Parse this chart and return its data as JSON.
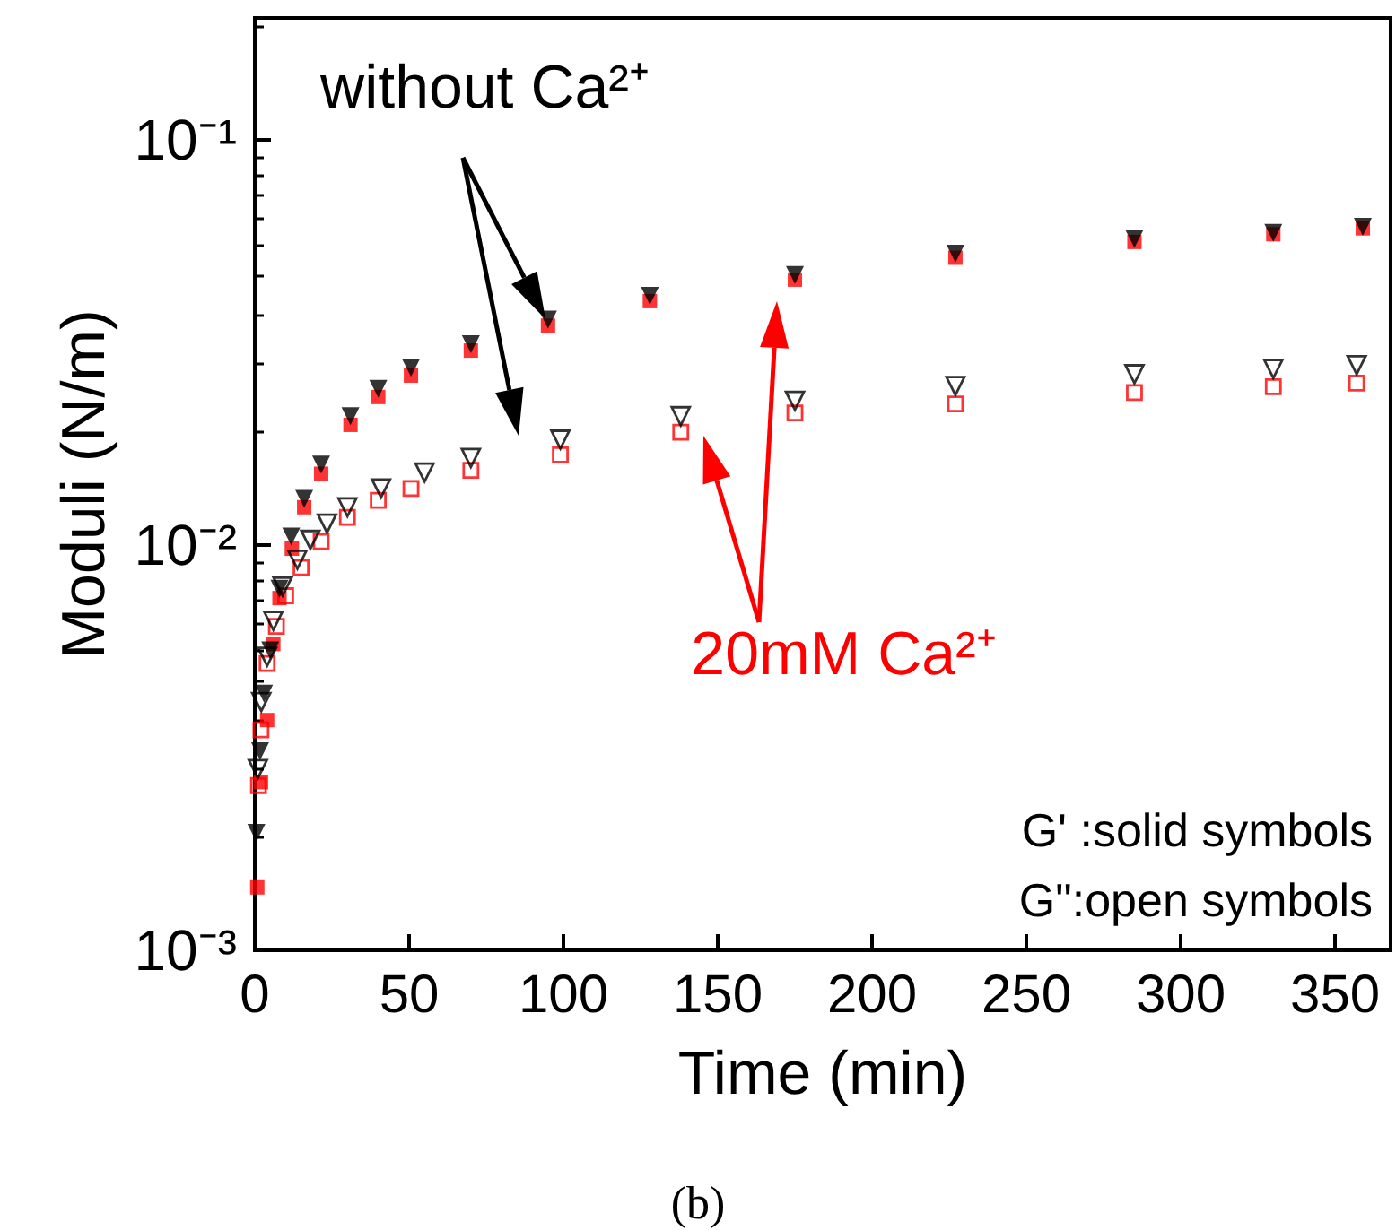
{
  "chart_data": {
    "type": "scatter",
    "xlabel": "Time (min)",
    "ylabel": "Moduli (N/m)",
    "xlim": [
      0,
      368
    ],
    "xticks": [
      0,
      50,
      100,
      150,
      200,
      250,
      300,
      350
    ],
    "ylim": [
      0.001,
      0.2
    ],
    "yticks": [
      {
        "value": 0.001,
        "label": "10⁻³"
      },
      {
        "value": 0.01,
        "label": "10⁻²"
      },
      {
        "value": 0.1,
        "label": "10⁻¹"
      }
    ],
    "log": "y",
    "grid": false,
    "annotations": [
      "without Ca²⁺",
      "20mM Ca²⁺",
      "G' :solid symbols",
      "G\":open symbols",
      "(b)"
    ],
    "series": [
      {
        "color": "#ff0000",
        "marker": "square",
        "x": [
          0.8,
          2,
          4,
          6,
          8,
          12,
          16,
          21.5,
          31,
          40,
          50.6,
          70,
          95,
          128,
          175,
          227,
          285,
          330,
          359
        ],
        "values": [
          0.00143,
          0.0026,
          0.0037,
          0.0057,
          0.0074,
          0.0098,
          0.0124,
          0.015,
          0.0198,
          0.0232,
          0.0262,
          0.0302,
          0.0348,
          0.04,
          0.0452,
          0.0512,
          0.056,
          0.0585,
          0.0605
        ]
      },
      {
        "color": "#ff0000",
        "marker": "square",
        "x": [
          1.2,
          2,
          4,
          7,
          10,
          15,
          21.5,
          30,
          40,
          50.6,
          70,
          99,
          138,
          175,
          227,
          285,
          330,
          357
        ],
        "values": [
          0.00255,
          0.0035,
          0.0051,
          0.0063,
          0.0075,
          0.0088,
          0.0102,
          0.0117,
          0.0129,
          0.0138,
          0.0153,
          0.0167,
          0.019,
          0.0212,
          0.0223,
          0.0238,
          0.0246,
          0.0251
        ]
      },
      {
        "color": "#000000",
        "marker": "triangle",
        "x": [
          0.5,
          1.7,
          3,
          5,
          8,
          11.8,
          16,
          21.5,
          31,
          40,
          50.6,
          70,
          95,
          128,
          175,
          227,
          285,
          330,
          359
        ],
        "values": [
          0.00195,
          0.0031,
          0.0043,
          0.0055,
          0.0078,
          0.0105,
          0.013,
          0.0158,
          0.0208,
          0.0243,
          0.0274,
          0.0313,
          0.036,
          0.0412,
          0.0464,
          0.0524,
          0.057,
          0.059,
          0.061
        ]
      },
      {
        "color": "#000000",
        "marker": "triangle",
        "x": [
          1,
          2.1,
          4,
          6,
          9,
          13.8,
          18,
          23.4,
          30,
          40.9,
          55,
          70,
          99,
          138,
          175,
          227,
          285,
          330,
          357
        ],
        "values": [
          0.0028,
          0.0041,
          0.0053,
          0.0065,
          0.0079,
          0.0092,
          0.0103,
          0.0113,
          0.0124,
          0.0138,
          0.0151,
          0.0164,
          0.0182,
          0.0208,
          0.0227,
          0.0247,
          0.0264,
          0.0272,
          0.0278
        ]
      }
    ]
  }
}
